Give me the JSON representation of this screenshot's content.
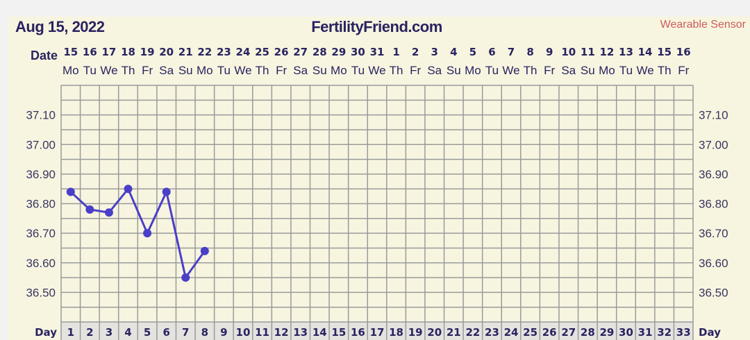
{
  "header": {
    "date": "Aug 15, 2022",
    "site": "FertilityFriend.com",
    "source": "Wearable Sensor",
    "date_label": "Date",
    "day_label": "Day"
  },
  "chart_data": {
    "type": "line",
    "x": [
      1,
      2,
      3,
      4,
      5,
      6,
      7,
      8
    ],
    "values": [
      36.84,
      36.78,
      36.77,
      36.85,
      36.7,
      36.84,
      36.55,
      36.64
    ],
    "days": [
      1,
      2,
      3,
      4,
      5,
      6,
      7,
      8,
      9,
      10,
      11,
      12,
      13,
      14,
      15,
      16,
      17,
      18,
      19,
      20,
      21,
      22,
      23,
      24,
      25,
      26,
      27,
      28,
      29,
      30,
      31,
      32,
      33
    ],
    "dates": [
      "15",
      "16",
      "17",
      "18",
      "19",
      "20",
      "21",
      "22",
      "23",
      "24",
      "25",
      "26",
      "27",
      "28",
      "29",
      "30",
      "31",
      "1",
      "2",
      "3",
      "4",
      "5",
      "6",
      "7",
      "8",
      "9",
      "10",
      "11",
      "12",
      "13",
      "14",
      "15",
      "16"
    ],
    "weekdays": [
      "Mo",
      "Tu",
      "We",
      "Th",
      "Fr",
      "Sa",
      "Su",
      "Mo",
      "Tu",
      "We",
      "Th",
      "Fr",
      "Sa",
      "Su",
      "Mo",
      "Tu",
      "We",
      "Th",
      "Fr",
      "Sa",
      "Su",
      "Mo",
      "Tu",
      "We",
      "Th",
      "Fr",
      "Sa",
      "Su",
      "Mo",
      "Tu",
      "We",
      "Th",
      "Fr"
    ],
    "yticks": [
      "36.50",
      "36.60",
      "36.70",
      "36.80",
      "36.90",
      "37.00",
      "37.10"
    ],
    "ylim": [
      36.4,
      37.2
    ],
    "grid": true,
    "line_color": "#4a3fc8"
  }
}
